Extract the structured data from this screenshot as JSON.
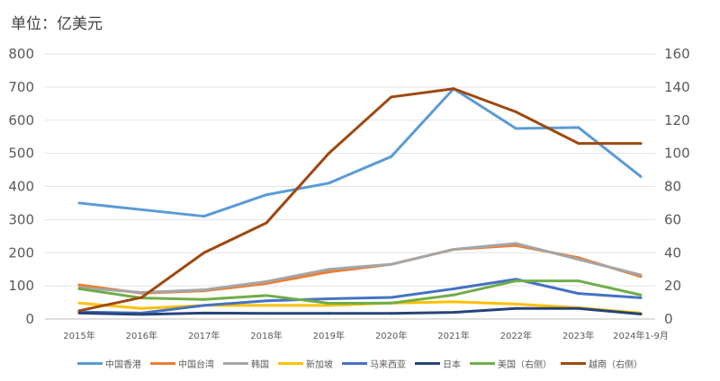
{
  "unit_label": "单位：亿美元",
  "chart_data": {
    "type": "line",
    "categories": [
      "2015年",
      "2016年",
      "2017年",
      "2018年",
      "2019年",
      "2020年",
      "2021年",
      "2022年",
      "2023年",
      "2024年1-9月"
    ],
    "left_axis": {
      "range": [
        0,
        800
      ],
      "ticks": [
        "0",
        "100",
        "200",
        "300",
        "400",
        "500",
        "600",
        "700",
        "800"
      ]
    },
    "right_axis": {
      "range": [
        0,
        160
      ],
      "ticks": [
        "0",
        "20",
        "40",
        "60",
        "80",
        "100",
        "120",
        "140",
        "160"
      ]
    },
    "grid": true,
    "legend_position": "bottom",
    "series": [
      {
        "name": "中国香港",
        "axis": "left",
        "color": "#5b9bd5",
        "values": [
          350,
          330,
          310,
          375,
          410,
          490,
          695,
          575,
          578,
          430
        ]
      },
      {
        "name": "中国台湾",
        "axis": "left",
        "color": "#ed7d31",
        "values": [
          103,
          78,
          85,
          107,
          142,
          165,
          210,
          222,
          185,
          128
        ]
      },
      {
        "name": "韩国",
        "axis": "left",
        "color": "#a5a5a5",
        "values": [
          95,
          80,
          88,
          113,
          150,
          165,
          210,
          228,
          180,
          133
        ]
      },
      {
        "name": "新加坡",
        "axis": "left",
        "color": "#ffc000",
        "values": [
          48,
          32,
          41,
          41,
          41,
          48,
          52,
          45,
          34,
          18
        ]
      },
      {
        "name": "马来西亚",
        "axis": "left",
        "color": "#4472c4",
        "values": [
          21,
          18,
          41,
          55,
          61,
          65,
          91,
          120,
          77,
          64
        ]
      },
      {
        "name": "日本",
        "axis": "left",
        "color": "#264478",
        "values": [
          18,
          14,
          18,
          17,
          17,
          17,
          20,
          32,
          32,
          15
        ]
      },
      {
        "name": "美国（右侧）",
        "axis": "right",
        "color": "#70ad47",
        "values": [
          18.2,
          12.7,
          11.8,
          14.2,
          9.5,
          9.6,
          14.5,
          23,
          23,
          14.5
        ]
      },
      {
        "name": "越南（右侧）",
        "axis": "right",
        "color": "#9e480e",
        "values": [
          5,
          13,
          40,
          58,
          100,
          134,
          139,
          125,
          106,
          106
        ]
      }
    ]
  }
}
